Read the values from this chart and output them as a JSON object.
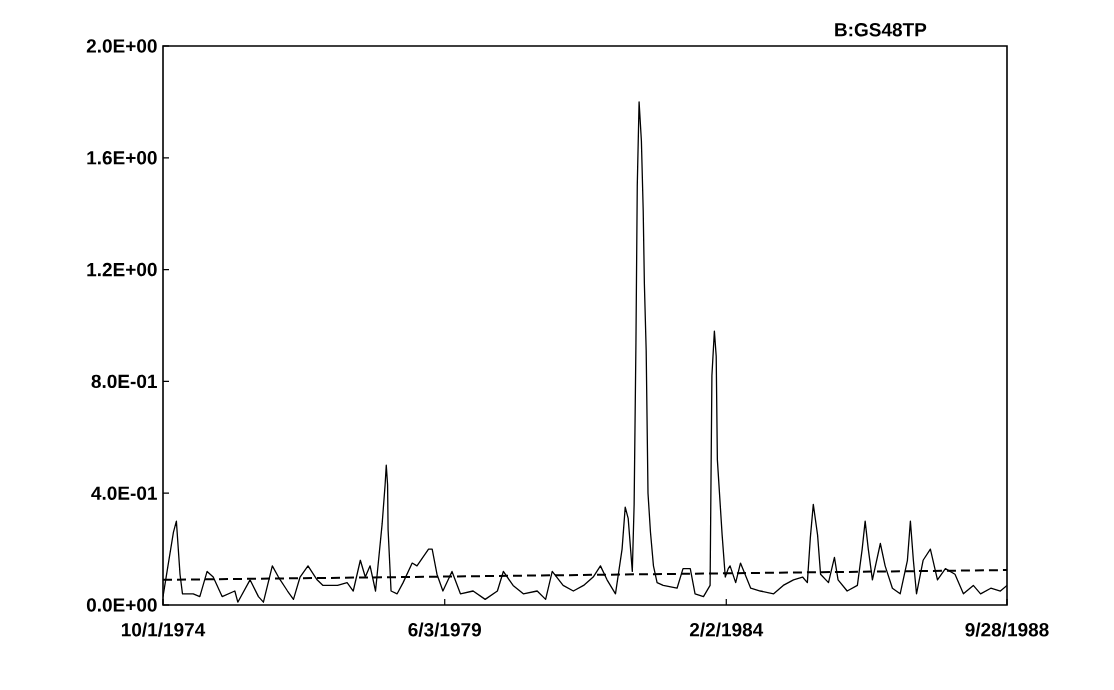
{
  "chart_data": {
    "type": "line",
    "title": "B:GS48TP",
    "xlim": [
      "1974-10-01",
      "1988-09-28"
    ],
    "xticks": [
      {
        "value": "1974-10-01",
        "label": "10/1/1974"
      },
      {
        "value": "1979-06-03",
        "label": "6/3/1979"
      },
      {
        "value": "1984-02-02",
        "label": "2/2/1984"
      },
      {
        "value": "1988-09-28",
        "label": "9/28/1988"
      }
    ],
    "ylim": [
      0,
      2.0
    ],
    "yticks": [
      {
        "value": 0,
        "label": "0.0E+00"
      },
      {
        "value": 0.4,
        "label": "4.0E-01"
      },
      {
        "value": 0.8,
        "label": "8.0E-01"
      },
      {
        "value": 1.2,
        "label": "1.2E+00"
      },
      {
        "value": 1.6,
        "label": "1.6E+00"
      },
      {
        "value": 2.0,
        "label": "2.0E+00"
      }
    ],
    "marker": "none",
    "series": [
      {
        "color": "#000000",
        "line_style": "solid",
        "x": [
          "1974-10-01",
          "1974-10-31",
          "1974-12-03",
          "1974-12-21",
          "1975-01-12",
          "1975-01-27",
          "1975-04-02",
          "1975-05-12",
          "1975-06-25",
          "1975-08-01",
          "1975-09-24",
          "1975-12-10",
          "1975-12-28",
          "1976-03-11",
          "1976-05-01",
          "1976-05-31",
          "1976-07-24",
          "1976-08-30",
          "1976-10-24",
          "1976-11-29",
          "1977-01-08",
          "1977-02-25",
          "1977-04-21",
          "1977-05-27",
          "1977-08-23",
          "1977-10-20",
          "1977-11-26",
          "1978-01-08",
          "1978-02-07",
          "1978-03-08",
          "1978-04-10",
          "1978-05-20",
          "1978-06-07",
          "1978-06-14",
          "1978-06-22",
          "1978-06-25",
          "1978-07-13",
          "1978-08-19",
          "1978-09-24",
          "1978-11-18",
          "1978-12-17",
          "1979-02-25",
          "1979-03-19",
          "1979-04-17",
          "1979-05-23",
          "1979-07-17",
          "1979-09-06",
          "1979-11-22",
          "1980-02-03",
          "1980-04-17",
          "1980-05-23",
          "1980-07-21",
          "1980-09-21",
          "1980-12-14",
          "1981-02-03",
          "1981-03-15",
          "1981-05-20",
          "1981-07-21",
          "1981-09-21",
          "1981-11-18",
          "1982-01-01",
          "1982-02-10",
          "1982-04-02",
          "1982-05-12",
          "1982-05-31",
          "1982-06-18",
          "1982-07-13",
          "1982-07-24",
          "1982-08-04",
          "1982-08-12",
          "1982-08-23",
          "1982-09-06",
          "1982-09-17",
          "1982-09-24",
          "1982-10-05",
          "1982-10-16",
          "1982-10-31",
          "1982-11-18",
          "1982-12-10",
          "1983-01-16",
          "1983-04-10",
          "1983-05-16",
          "1983-06-29",
          "1983-07-28",
          "1983-09-17",
          "1983-10-27",
          "1983-11-07",
          "1983-11-22",
          "1983-12-03",
          "1983-12-10",
          "1984-01-08",
          "1984-01-27",
          "1984-02-14",
          "1984-02-25",
          "1984-03-30",
          "1984-04-28",
          "1984-06-29",
          "1984-08-26",
          "1984-11-15",
          "1985-01-12",
          "1985-03-15",
          "1985-05-09",
          "1985-06-07",
          "1985-06-25",
          "1985-07-13",
          "1985-08-08",
          "1985-08-26",
          "1985-10-13",
          "1985-11-18",
          "1985-12-10",
          "1986-02-03",
          "1986-04-06",
          "1986-05-05",
          "1986-05-23",
          "1986-06-11",
          "1986-07-06",
          "1986-08-23",
          "1986-09-21",
          "1986-11-04",
          "1986-12-21",
          "1987-02-03",
          "1987-02-21",
          "1987-03-11",
          "1987-03-30",
          "1987-05-09",
          "1987-06-22",
          "1987-08-04",
          "1987-09-21",
          "1987-11-18",
          "1988-01-08",
          "1988-03-08",
          "1988-04-21",
          "1988-06-22",
          "1988-08-19",
          "1988-09-28"
        ],
        "values": [
          0.03,
          0.14,
          0.26,
          0.3,
          0.11,
          0.04,
          0.04,
          0.03,
          0.12,
          0.1,
          0.03,
          0.05,
          0.01,
          0.09,
          0.03,
          0.01,
          0.14,
          0.1,
          0.05,
          0.02,
          0.1,
          0.14,
          0.09,
          0.07,
          0.07,
          0.08,
          0.05,
          0.16,
          0.1,
          0.14,
          0.05,
          0.29,
          0.43,
          0.5,
          0.43,
          0.27,
          0.05,
          0.04,
          0.08,
          0.15,
          0.14,
          0.2,
          0.2,
          0.11,
          0.05,
          0.12,
          0.04,
          0.05,
          0.02,
          0.05,
          0.12,
          0.07,
          0.04,
          0.05,
          0.02,
          0.12,
          0.07,
          0.05,
          0.07,
          0.1,
          0.14,
          0.09,
          0.04,
          0.2,
          0.35,
          0.31,
          0.12,
          0.36,
          0.94,
          1.5,
          1.8,
          1.66,
          1.41,
          1.15,
          0.91,
          0.4,
          0.26,
          0.14,
          0.08,
          0.07,
          0.06,
          0.13,
          0.13,
          0.04,
          0.03,
          0.07,
          0.82,
          0.98,
          0.89,
          0.52,
          0.25,
          0.1,
          0.13,
          0.14,
          0.08,
          0.15,
          0.06,
          0.05,
          0.04,
          0.07,
          0.09,
          0.1,
          0.08,
          0.24,
          0.36,
          0.25,
          0.11,
          0.08,
          0.17,
          0.09,
          0.05,
          0.07,
          0.2,
          0.3,
          0.2,
          0.09,
          0.22,
          0.14,
          0.06,
          0.04,
          0.16,
          0.3,
          0.16,
          0.04,
          0.16,
          0.2,
          0.09,
          0.13,
          0.11,
          0.04,
          0.07,
          0.04,
          0.06,
          0.05,
          0.07
        ]
      },
      {
        "color": "#000000",
        "line_style": "dashed",
        "x": [
          "1974-10-01",
          "1988-09-28"
        ],
        "values": [
          0.09,
          0.125
        ]
      }
    ]
  }
}
